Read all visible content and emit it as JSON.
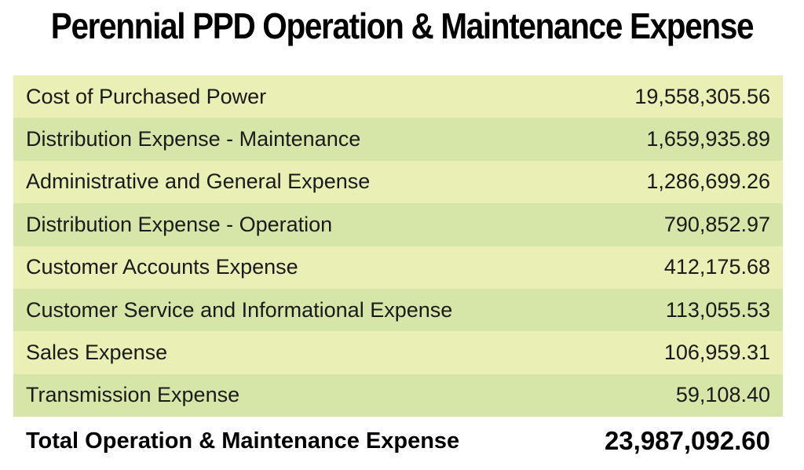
{
  "chart_data": {
    "type": "table",
    "title": "Perennial PPD Operation & Maintenance Expense",
    "rows": [
      {
        "label": "Cost of Purchased Power",
        "value": "19,558,305.56"
      },
      {
        "label": "Distribution Expense - Maintenance",
        "value": "1,659,935.89"
      },
      {
        "label": "Administrative and General Expense",
        "value": "1,286,699.26"
      },
      {
        "label": "Distribution Expense - Operation",
        "value": "790,852.97"
      },
      {
        "label": "Customer Accounts Expense",
        "value": "412,175.68"
      },
      {
        "label": "Customer Service and Informational Expense",
        "value": "113,055.53"
      },
      {
        "label": "Sales Expense",
        "value": "106,959.31"
      },
      {
        "label": "Transmission Expense",
        "value": "59,108.40"
      }
    ],
    "total": {
      "label": "Total Operation & Maintenance Expense",
      "value": "23,987,092.60"
    },
    "colors": {
      "row_light": "#e9efb5",
      "row_dark": "#d6e6a8"
    }
  }
}
